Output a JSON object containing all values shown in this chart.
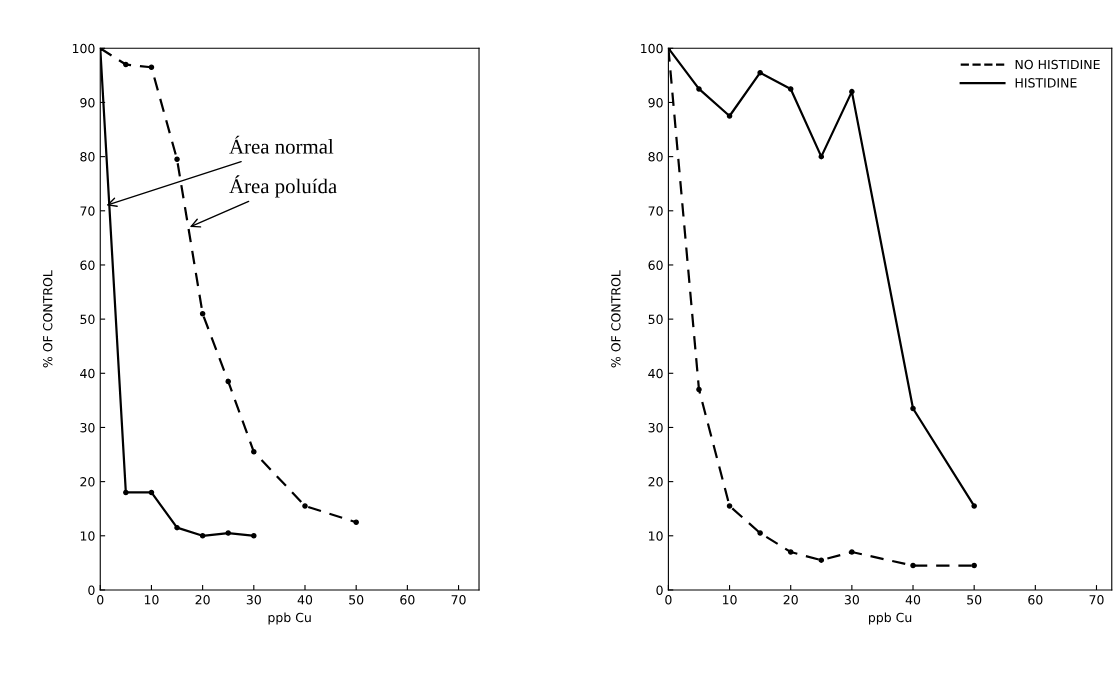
{
  "chart_data": [
    {
      "type": "line",
      "xlabel": "ppb Cu",
      "ylabel": "% OF CONTROL",
      "xlim": [
        0,
        74
      ],
      "ylim": [
        0,
        100
      ],
      "xticks": [
        0,
        10,
        20,
        30,
        40,
        50,
        60,
        70
      ],
      "yticks": [
        0,
        10,
        20,
        30,
        40,
        50,
        60,
        70,
        80,
        90,
        100
      ],
      "grid": false,
      "legend": false,
      "marker": "circle",
      "annotations": [
        {
          "text": "Área normal",
          "x": 1.2,
          "y": 71
        },
        {
          "text": "Área poluída",
          "x": 17.5,
          "y": 67
        }
      ],
      "series": [
        {
          "color": "#000000",
          "line_style": "solid",
          "x": [
            0,
            5,
            10,
            15,
            20,
            25,
            30
          ],
          "values": [
            100,
            18,
            18,
            11.5,
            10,
            10.5,
            10
          ]
        },
        {
          "color": "#000000",
          "line_style": "dashed",
          "x": [
            0,
            5,
            10,
            15,
            20,
            25,
            30,
            40,
            50
          ],
          "values": [
            100,
            97,
            96.5,
            79.5,
            51,
            38.5,
            25.5,
            15.5,
            12.5
          ]
        }
      ]
    },
    {
      "type": "line",
      "xlabel": "ppb Cu",
      "ylabel": "% OF CONTROL",
      "xlim": [
        0,
        72.5
      ],
      "ylim": [
        0,
        100
      ],
      "xticks": [
        0,
        10,
        20,
        30,
        40,
        50,
        60,
        70
      ],
      "yticks": [
        0,
        10,
        20,
        30,
        40,
        50,
        60,
        70,
        80,
        90,
        100
      ],
      "grid": false,
      "legend": "top right",
      "marker": "circle",
      "series": [
        {
          "name": "NO HISTIDINE",
          "color": "#000000",
          "line_style": "dashed",
          "x": [
            0,
            5,
            10,
            15,
            20,
            25,
            30,
            40,
            50
          ],
          "values": [
            100,
            37,
            15.5,
            10.5,
            7,
            5.5,
            7,
            4.5,
            4.5
          ]
        },
        {
          "name": "HISTIDINE",
          "color": "#000000",
          "line_style": "solid",
          "x": [
            0,
            5,
            10,
            15,
            20,
            25,
            30,
            40,
            50
          ],
          "values": [
            100,
            92.5,
            87.5,
            95.5,
            92.5,
            80,
            92,
            33.5,
            15.5
          ]
        }
      ]
    }
  ]
}
